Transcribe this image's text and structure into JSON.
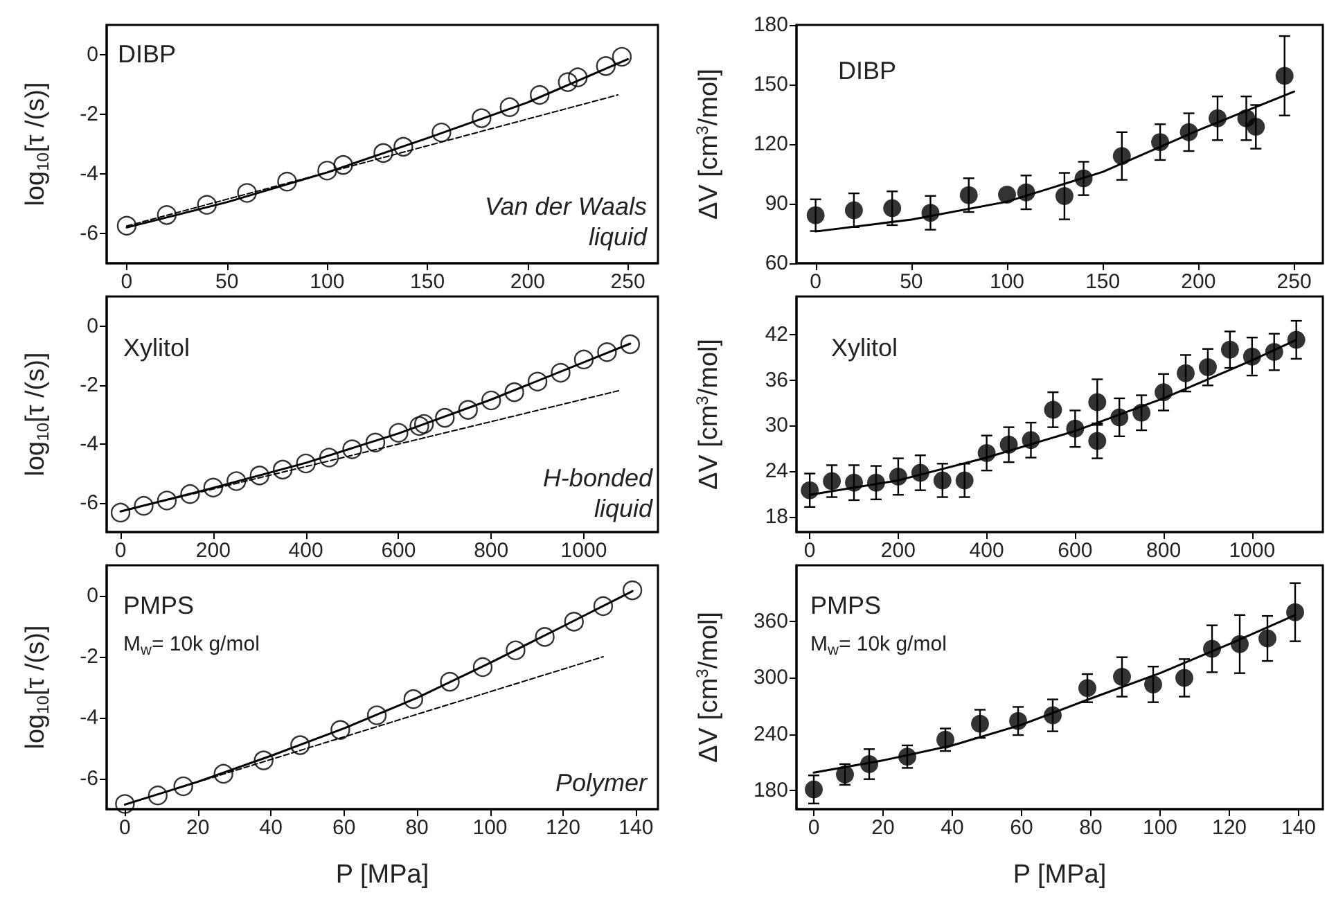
{
  "chart_data": [
    {
      "type": "scatter",
      "ylabel": "log$_{10}$[τ /(s)]",
      "xlim": [
        -10,
        265
      ],
      "xticks": [
        0,
        50,
        100,
        150,
        200,
        250
      ],
      "ylim": [
        -7,
        1
      ],
      "yticks": [
        -6,
        -4,
        -2,
        0
      ],
      "marker": "circle",
      "annotations": [
        "DIBP",
        "Van der Waals\nliquid"
      ],
      "series": [
        {
          "color": "#000000",
          "x": [
            0,
            20,
            40,
            60,
            80,
            100,
            108,
            128,
            138,
            157,
            177,
            191,
            206,
            220,
            225,
            239,
            247
          ],
          "values": [
            -5.74,
            -5.38,
            -5.04,
            -4.64,
            -4.26,
            -3.89,
            -3.7,
            -3.3,
            -3.09,
            -2.61,
            -2.13,
            -1.76,
            -1.35,
            -0.92,
            -0.76,
            -0.38,
            -0.07
          ]
        },
        {
          "type": "line",
          "color": "#000000",
          "line_style": "solid",
          "marker": "none",
          "x": [
            0,
            50,
            100,
            150,
            200,
            250
          ],
          "values": [
            -5.8,
            -4.95,
            -3.95,
            -2.8,
            -1.6,
            -0.15
          ]
        },
        {
          "type": "line",
          "color": "#000000",
          "line_style": "dashed",
          "marker": "none",
          "x": [
            0,
            245
          ],
          "values": [
            -5.75,
            -1.35
          ]
        }
      ]
    },
    {
      "type": "scatter",
      "ylabel": "ΔV [cm$^{3}$/mol]",
      "xlim": [
        -10,
        265
      ],
      "xticks": [
        0,
        50,
        100,
        150,
        200,
        250
      ],
      "ylim": [
        60,
        180
      ],
      "yticks": [
        60,
        90,
        120,
        150,
        180
      ],
      "marker": "circle",
      "annotations": [
        "DIBP"
      ],
      "series": [
        {
          "color": "#000000",
          "x": [
            0,
            20,
            40,
            60,
            80,
            100,
            110,
            130,
            140,
            160,
            180,
            195,
            210,
            225,
            230,
            245
          ],
          "values": [
            84.2,
            86.7,
            87.7,
            85.4,
            94.3,
            94.5,
            95.7,
            93.8,
            102.7,
            114,
            121,
            126,
            133,
            133,
            128.7,
            154.4
          ],
          "errors": [
            8,
            8.5,
            8.5,
            8.5,
            8.5,
            null,
            8.5,
            11.7,
            8.4,
            12,
            9,
            9.5,
            11,
            11,
            11,
            20
          ]
        },
        {
          "type": "line",
          "color": "#000000",
          "line_style": "solid",
          "marker": "none",
          "x": [
            0,
            50,
            100,
            150,
            200,
            250
          ],
          "values": [
            76,
            82,
            91,
            106,
            127,
            146.5
          ]
        }
      ]
    },
    {
      "type": "scatter",
      "ylabel": "log$_{10}$[τ /(s)]",
      "xlim": [
        -30,
        1160
      ],
      "xticks": [
        0,
        200,
        400,
        600,
        800,
        1000
      ],
      "ylim": [
        -7,
        1
      ],
      "yticks": [
        -6,
        -4,
        -2,
        0
      ],
      "marker": "circle",
      "annotations": [
        "Xylitol",
        "H-bonded\nliquid"
      ],
      "series": [
        {
          "color": "#000000",
          "x": [
            0,
            50,
            100,
            150,
            200,
            250,
            300,
            350,
            400,
            450,
            500,
            550,
            600,
            645,
            655,
            700,
            750,
            800,
            850,
            900,
            950,
            1000,
            1050,
            1100
          ],
          "values": [
            -6.34,
            -6.11,
            -5.93,
            -5.71,
            -5.49,
            -5.27,
            -5.08,
            -4.88,
            -4.67,
            -4.47,
            -4.19,
            -3.96,
            -3.63,
            -3.4,
            -3.33,
            -3.12,
            -2.85,
            -2.53,
            -2.25,
            -1.89,
            -1.59,
            -1.14,
            -0.89,
            -0.62
          ]
        },
        {
          "type": "line",
          "color": "#000000",
          "line_style": "solid",
          "marker": "none",
          "x": [
            0,
            200,
            400,
            600,
            800,
            1100
          ],
          "values": [
            -6.3,
            -5.5,
            -4.65,
            -3.65,
            -2.5,
            -0.6
          ]
        },
        {
          "type": "line",
          "color": "#000000",
          "line_style": "dashed",
          "marker": "none",
          "x": [
            0,
            1075
          ],
          "values": [
            -6.3,
            -2.2
          ]
        }
      ]
    },
    {
      "type": "scatter",
      "ylabel": "ΔV [cm$^{3}$/mol]",
      "xlim": [
        -30,
        1160
      ],
      "xticks": [
        0,
        200,
        400,
        600,
        800,
        1000
      ],
      "ylim": [
        16,
        47
      ],
      "yticks": [
        18,
        24,
        30,
        36,
        42
      ],
      "marker": "circle",
      "annotations": [
        "Xylitol"
      ],
      "series": [
        {
          "color": "#000000",
          "x": [
            0,
            50,
            100,
            150,
            200,
            250,
            300,
            350,
            400,
            450,
            500,
            550,
            600,
            650,
            650,
            700,
            750,
            800,
            850,
            900,
            950,
            1000,
            1050,
            1100
          ],
          "values": [
            21.5,
            22.7,
            22.5,
            22.5,
            23.3,
            23.8,
            22.8,
            22.8,
            26.4,
            27.5,
            28.1,
            32.1,
            29.6,
            33.1,
            28,
            31.1,
            31.7,
            34.4,
            36.9,
            37.7,
            40,
            39.1,
            39.7,
            41.3
          ],
          "errors": [
            2.2,
            2.1,
            2.3,
            2.2,
            2.4,
            2.3,
            2.2,
            2.2,
            2.3,
            2.3,
            2.3,
            2.3,
            2.4,
            3,
            2.3,
            2.5,
            2.3,
            2.4,
            2.4,
            2.4,
            2.4,
            2.5,
            2.4,
            2.5
          ]
        },
        {
          "type": "line",
          "color": "#000000",
          "line_style": "solid",
          "marker": "none",
          "x": [
            0,
            200,
            400,
            600,
            800,
            1000,
            1100
          ],
          "values": [
            20.9,
            22.8,
            25.8,
            29.3,
            33.6,
            38.6,
            41.3
          ]
        }
      ]
    },
    {
      "type": "scatter",
      "ylabel": "log$_{10}$[τ /(s)]",
      "xlabel": "P [MPa]",
      "xlim": [
        -5,
        146
      ],
      "xticks": [
        0,
        20,
        40,
        60,
        80,
        100,
        120,
        140
      ],
      "ylim": [
        -7,
        1
      ],
      "yticks": [
        -6,
        -4,
        -2,
        0
      ],
      "marker": "circle",
      "annotations": [
        "PMPS",
        "M$_{w}$= 10k g/mol",
        "Polymer"
      ],
      "series": [
        {
          "color": "#000000",
          "x": [
            0,
            9,
            16,
            27,
            38,
            48,
            59,
            69,
            79,
            89,
            98,
            107,
            115,
            123,
            131,
            139
          ],
          "values": [
            -6.83,
            -6.55,
            -6.25,
            -5.84,
            -5.4,
            -4.9,
            -4.4,
            -3.92,
            -3.39,
            -2.82,
            -2.34,
            -1.79,
            -1.35,
            -0.85,
            -0.34,
            0.18
          ]
        },
        {
          "type": "line",
          "color": "#000000",
          "line_style": "solid",
          "marker": "none",
          "x": [
            0,
            20,
            40,
            60,
            80,
            100,
            120,
            139
          ],
          "values": [
            -6.85,
            -6.1,
            -5.25,
            -4.35,
            -3.35,
            -2.2,
            -1.0,
            0.15
          ]
        },
        {
          "type": "line",
          "color": "#000000",
          "line_style": "dashed",
          "marker": "none",
          "x": [
            0,
            131
          ],
          "values": [
            -6.85,
            -2.0
          ]
        }
      ]
    },
    {
      "type": "scatter",
      "ylabel": "ΔV [cm$^{3}$/mol]",
      "xlabel": "P [MPa]",
      "xlim": [
        -5,
        147
      ],
      "xticks": [
        0,
        20,
        40,
        60,
        80,
        100,
        120,
        140
      ],
      "ylim": [
        160,
        420
      ],
      "yticks": [
        180,
        240,
        300,
        360
      ],
      "marker": "circle",
      "annotations": [
        "PMPS",
        "M$_{w}$= 10k g/mol"
      ],
      "series": [
        {
          "color": "#000000",
          "x": [
            0,
            9,
            16,
            27,
            38,
            48,
            59,
            69,
            79,
            89,
            98,
            107,
            115,
            123,
            131,
            139
          ],
          "values": [
            181,
            197,
            208,
            216,
            234,
            251,
            254,
            260,
            289,
            301,
            293,
            300,
            331,
            336,
            342,
            370
          ],
          "errors": [
            15,
            11,
            16,
            12,
            12,
            15,
            15,
            17,
            15,
            21,
            19,
            20,
            25,
            31,
            24,
            31
          ]
        },
        {
          "type": "line",
          "color": "#000000",
          "line_style": "solid",
          "marker": "none",
          "x": [
            0,
            20,
            40,
            60,
            80,
            100,
            120,
            139
          ],
          "values": [
            199,
            212,
            228,
            250,
            278,
            305,
            336,
            367
          ]
        }
      ]
    }
  ]
}
